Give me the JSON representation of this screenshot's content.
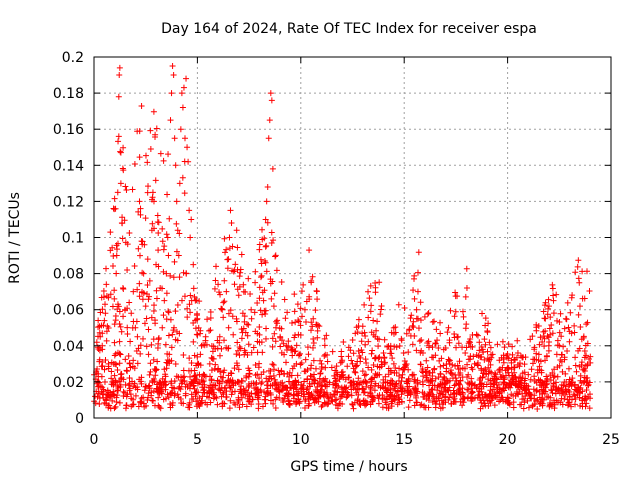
{
  "chart_data": {
    "type": "scatter",
    "title": "Day 164 of 2024, Rate Of TEC Index for receiver espa",
    "xlabel": "GPS time / hours",
    "ylabel": "ROTI / TECUs",
    "xlim": [
      0,
      25
    ],
    "ylim": [
      0,
      0.2
    ],
    "xticks": [
      0,
      5,
      10,
      15,
      20,
      25
    ],
    "xtick_labels": [
      "0",
      "5",
      "10",
      "15",
      "20",
      "25"
    ],
    "yticks": [
      0,
      0.02,
      0.04,
      0.06,
      0.08,
      0.1,
      0.12,
      0.14,
      0.16,
      0.18,
      0.2
    ],
    "ytick_labels": [
      "0",
      "0.02",
      "0.04",
      "0.06",
      "0.08",
      "0.1",
      "0.12",
      "0.14",
      "0.16",
      "0.18",
      "0.2"
    ],
    "grid": true,
    "marker": "+",
    "marker_color": "#ff0000",
    "series": [
      {
        "name": "ROTI",
        "points": [
          [
            0.05,
            0.012
          ],
          [
            0.1,
            0.025
          ],
          [
            0.2,
            0.054
          ],
          [
            0.3,
            0.045
          ],
          [
            0.4,
            0.038
          ],
          [
            0.55,
            0.058
          ],
          [
            0.7,
            0.03
          ],
          [
            0.9,
            0.02
          ],
          [
            1.0,
            0.052
          ],
          [
            1.1,
            0.09
          ],
          [
            1.15,
            0.125
          ],
          [
            1.2,
            0.156
          ],
          [
            1.2,
            0.178
          ],
          [
            1.22,
            0.19
          ],
          [
            1.25,
            0.194
          ],
          [
            1.3,
            0.147
          ],
          [
            1.3,
            0.13
          ],
          [
            1.35,
            0.108
          ],
          [
            1.4,
            0.072
          ],
          [
            1.5,
            0.06
          ],
          [
            1.6,
            0.082
          ],
          [
            1.7,
            0.064
          ],
          [
            1.8,
            0.058
          ],
          [
            1.9,
            0.07
          ],
          [
            2.0,
            0.05
          ],
          [
            2.1,
            0.045
          ],
          [
            2.2,
            0.12
          ],
          [
            2.25,
            0.116
          ],
          [
            2.3,
            0.098
          ],
          [
            2.4,
            0.08
          ],
          [
            2.5,
            0.062
          ],
          [
            2.6,
            0.088
          ],
          [
            2.7,
            0.076
          ],
          [
            2.8,
            0.104
          ],
          [
            2.85,
            0.125
          ],
          [
            2.9,
            0.12
          ],
          [
            3.0,
            0.085
          ],
          [
            3.1,
            0.093
          ],
          [
            3.2,
            0.072
          ],
          [
            3.3,
            0.05
          ],
          [
            3.4,
            0.065
          ],
          [
            3.5,
            0.08
          ],
          [
            3.6,
            0.09
          ],
          [
            3.7,
            0.165
          ],
          [
            3.75,
            0.18
          ],
          [
            3.8,
            0.195
          ],
          [
            3.85,
            0.19
          ],
          [
            3.9,
            0.155
          ],
          [
            3.95,
            0.14
          ],
          [
            4.0,
            0.12
          ],
          [
            4.05,
            0.104
          ],
          [
            4.1,
            0.09
          ],
          [
            4.15,
            0.13
          ],
          [
            4.2,
            0.16
          ],
          [
            4.25,
            0.18
          ],
          [
            4.3,
            0.172
          ],
          [
            4.35,
            0.183
          ],
          [
            4.4,
            0.155
          ],
          [
            4.45,
            0.188
          ],
          [
            4.5,
            0.15
          ],
          [
            4.55,
            0.142
          ],
          [
            4.6,
            0.115
          ],
          [
            4.65,
            0.1
          ],
          [
            4.7,
            0.11
          ],
          [
            4.8,
            0.085
          ],
          [
            4.9,
            0.065
          ],
          [
            5.0,
            0.055
          ],
          [
            5.2,
            0.04
          ],
          [
            5.4,
            0.045
          ],
          [
            5.6,
            0.03
          ],
          [
            5.9,
            0.084
          ],
          [
            6.0,
            0.074
          ],
          [
            6.2,
            0.06
          ],
          [
            6.4,
            0.07
          ],
          [
            6.5,
            0.088
          ],
          [
            6.55,
            0.1
          ],
          [
            6.6,
            0.115
          ],
          [
            6.65,
            0.108
          ],
          [
            6.7,
            0.095
          ],
          [
            6.8,
            0.082
          ],
          [
            6.9,
            0.104
          ],
          [
            7.0,
            0.068
          ],
          [
            7.2,
            0.058
          ],
          [
            7.4,
            0.052
          ],
          [
            7.6,
            0.06
          ],
          [
            7.8,
            0.048
          ],
          [
            8.0,
            0.042
          ],
          [
            8.2,
            0.065
          ],
          [
            8.3,
            0.11
          ],
          [
            8.35,
            0.12
          ],
          [
            8.4,
            0.128
          ],
          [
            8.45,
            0.155
          ],
          [
            8.5,
            0.165
          ],
          [
            8.55,
            0.18
          ],
          [
            8.6,
            0.176
          ],
          [
            8.65,
            0.138
          ],
          [
            8.7,
            0.062
          ],
          [
            8.8,
            0.05
          ],
          [
            9.0,
            0.045
          ],
          [
            9.3,
            0.04
          ],
          [
            9.6,
            0.038
          ],
          [
            10.0,
            0.046
          ],
          [
            10.2,
            0.06
          ],
          [
            10.4,
            0.093
          ],
          [
            10.5,
            0.076
          ],
          [
            10.6,
            0.055
          ],
          [
            11.0,
            0.03
          ],
          [
            11.5,
            0.028
          ],
          [
            12.0,
            0.032
          ],
          [
            12.5,
            0.03
          ],
          [
            13.0,
            0.026
          ],
          [
            13.5,
            0.054
          ],
          [
            13.6,
            0.045
          ],
          [
            14.0,
            0.036
          ],
          [
            14.5,
            0.03
          ],
          [
            15.0,
            0.028
          ],
          [
            15.5,
            0.066
          ],
          [
            15.6,
            0.06
          ],
          [
            16.0,
            0.056
          ],
          [
            16.2,
            0.04
          ],
          [
            16.8,
            0.033
          ],
          [
            17.2,
            0.03
          ],
          [
            17.6,
            0.045
          ],
          [
            18.0,
            0.052
          ],
          [
            18.3,
            0.046
          ],
          [
            18.8,
            0.038
          ],
          [
            19.2,
            0.035
          ],
          [
            19.6,
            0.032
          ],
          [
            20.0,
            0.028
          ],
          [
            20.5,
            0.036
          ],
          [
            21.0,
            0.024
          ],
          [
            21.5,
            0.032
          ],
          [
            21.9,
            0.034
          ],
          [
            22.0,
            0.062
          ],
          [
            22.5,
            0.04
          ],
          [
            23.0,
            0.048
          ],
          [
            23.5,
            0.062
          ],
          [
            23.8,
            0.052
          ],
          [
            24.0,
            0.034
          ]
        ]
      }
    ]
  }
}
